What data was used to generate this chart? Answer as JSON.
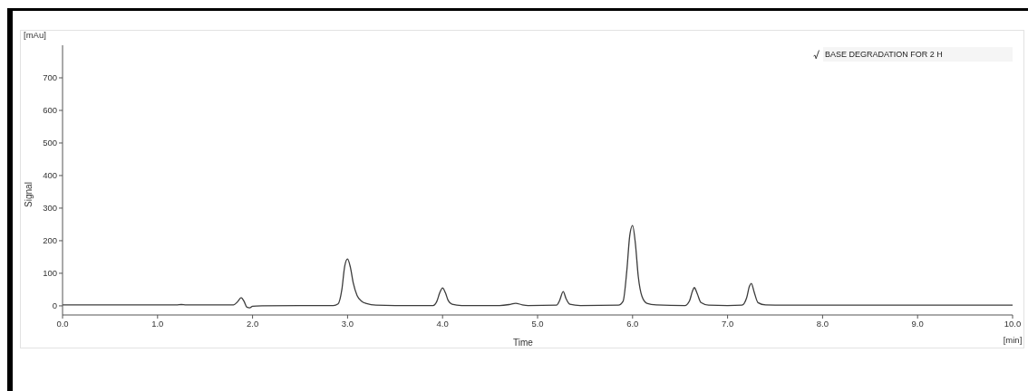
{
  "chart_data": {
    "type": "line",
    "xlabel": "Time",
    "ylabel": "Signal",
    "annotations": [
      "[mAu]",
      "[min]"
    ],
    "x": [
      0,
      0.5,
      1.0,
      1.2,
      1.25,
      1.3,
      1.5,
      1.8,
      1.84,
      1.88,
      1.91,
      1.94,
      1.97,
      2.0,
      2.1,
      2.5,
      2.85,
      2.9,
      2.94,
      2.97,
      3.0,
      3.03,
      3.06,
      3.1,
      3.15,
      3.2,
      3.3,
      3.5,
      3.9,
      3.94,
      3.97,
      4.0,
      4.03,
      4.06,
      4.1,
      4.2,
      4.6,
      4.7,
      4.77,
      4.84,
      4.9,
      5.2,
      5.23,
      5.27,
      5.3,
      5.34,
      5.45,
      5.85,
      5.9,
      5.94,
      5.97,
      6.0,
      6.03,
      6.06,
      6.1,
      6.15,
      6.25,
      6.55,
      6.6,
      6.63,
      6.65,
      6.68,
      6.72,
      6.8,
      7.0,
      7.15,
      7.2,
      7.23,
      7.25,
      7.28,
      7.32,
      7.4,
      7.6,
      8.0,
      9.0,
      10.0
    ],
    "series": [
      {
        "name": "BASE DEGRADATION FOR 2 H",
        "color": "#3c3c3c",
        "values": [
          3,
          3,
          3,
          3,
          4,
          3,
          3,
          3,
          12,
          25,
          14,
          -4,
          -6,
          -1,
          0,
          1,
          1,
          6,
          50,
          122,
          144,
          118,
          70,
          32,
          14,
          7,
          2,
          1,
          1,
          14,
          40,
          55,
          40,
          16,
          5,
          1,
          1,
          4,
          8,
          3,
          1,
          2,
          15,
          44,
          22,
          5,
          1,
          2,
          14,
          110,
          215,
          247,
          190,
          90,
          28,
          8,
          3,
          1,
          16,
          45,
          56,
          38,
          10,
          2,
          1,
          2,
          24,
          60,
          69,
          42,
          10,
          3,
          2,
          2,
          2,
          2
        ]
      }
    ],
    "xlim": [
      0,
      10
    ],
    "xticks": [
      {
        "value": 0,
        "label": "0.0"
      },
      {
        "value": 1,
        "label": "1.0"
      },
      {
        "value": 2,
        "label": "2.0"
      },
      {
        "value": 3,
        "label": "3.0"
      },
      {
        "value": 4,
        "label": "4.0"
      },
      {
        "value": 5,
        "label": "5.0"
      },
      {
        "value": 6,
        "label": "6.0"
      },
      {
        "value": 7,
        "label": "7.0"
      },
      {
        "value": 8,
        "label": "8.0"
      },
      {
        "value": 9,
        "label": "9.0"
      },
      {
        "value": 10,
        "label": "10.0"
      }
    ],
    "ylim": [
      -28,
      800
    ],
    "yticks": [
      0,
      100,
      200,
      300,
      400,
      500,
      600,
      700
    ],
    "legend": "top right",
    "marker": "none"
  }
}
